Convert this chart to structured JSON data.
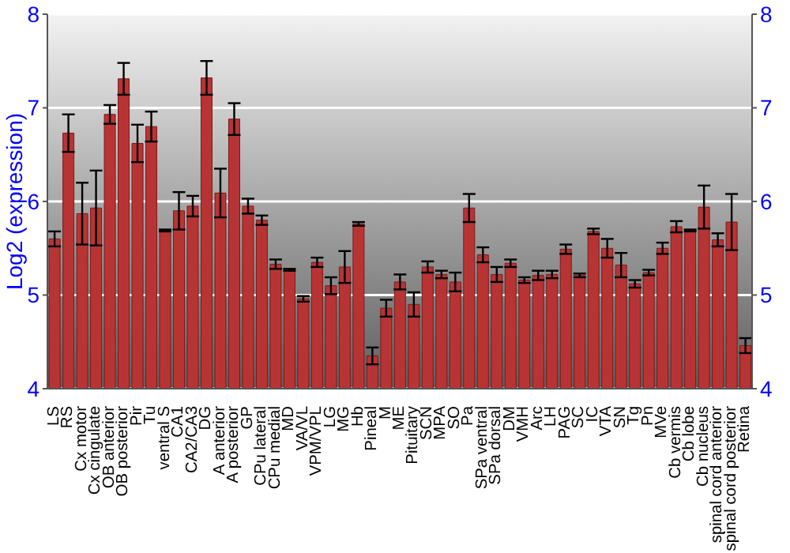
{
  "chart_data": {
    "type": "bar",
    "ylabel": "Log2 (expression)",
    "categories": [
      "LS",
      "RS",
      "Cx motor",
      "Cx cingulate",
      "OB anterior",
      "OB posterior",
      "Pir",
      "Tu",
      "ventral S",
      "CA1",
      "CA2/CA3",
      "DG",
      "A anterior",
      "A posterior",
      "GP",
      "CPu lateral",
      "CPu medial",
      "MD",
      "VA/VL",
      "VPM/VPL",
      "LG",
      "MG",
      "Hb",
      "Pineal",
      "M",
      "ME",
      "Pituitary",
      "SCN",
      "MPA",
      "SO",
      "Pa",
      "SPa ventral",
      "SPa dorsal",
      "DM",
      "VMH",
      "Arc",
      "LH",
      "PAG",
      "SC",
      "IC",
      "VTA",
      "SN",
      "Tg",
      "Pn",
      "MVe",
      "Cb vermis",
      "Cb lobe",
      "Cb nucleus",
      "spinal cord anterior",
      "spinal cord posterior",
      "Retina"
    ],
    "values": [
      5.6,
      6.73,
      5.87,
      5.93,
      6.93,
      7.31,
      6.62,
      6.8,
      5.69,
      5.9,
      5.95,
      7.32,
      6.09,
      6.88,
      5.95,
      5.8,
      5.33,
      5.27,
      4.96,
      5.35,
      5.1,
      5.3,
      5.76,
      4.35,
      4.86,
      5.14,
      4.9,
      5.3,
      5.22,
      5.14,
      5.93,
      5.43,
      5.22,
      5.34,
      5.16,
      5.21,
      5.22,
      5.49,
      5.21,
      5.68,
      5.5,
      5.32,
      5.12,
      5.24,
      5.5,
      5.73,
      5.69,
      5.94,
      5.59,
      5.78,
      4.46
    ],
    "errors": [
      0.08,
      0.2,
      0.33,
      0.4,
      0.1,
      0.17,
      0.2,
      0.16,
      0.01,
      0.2,
      0.11,
      0.18,
      0.26,
      0.17,
      0.08,
      0.05,
      0.05,
      0.01,
      0.03,
      0.05,
      0.09,
      0.17,
      0.02,
      0.09,
      0.09,
      0.08,
      0.13,
      0.06,
      0.04,
      0.1,
      0.15,
      0.08,
      0.08,
      0.04,
      0.03,
      0.05,
      0.04,
      0.05,
      0.02,
      0.03,
      0.1,
      0.13,
      0.04,
      0.03,
      0.06,
      0.06,
      0.01,
      0.23,
      0.07,
      0.3,
      0.08
    ],
    "color": "#b83434",
    "ylim": [
      4,
      8
    ],
    "yticks": [
      4,
      5,
      6,
      7,
      8
    ],
    "y2lim": [
      4,
      8
    ],
    "y2ticks": [
      4,
      5,
      6,
      7,
      8
    ],
    "grid": "y"
  }
}
